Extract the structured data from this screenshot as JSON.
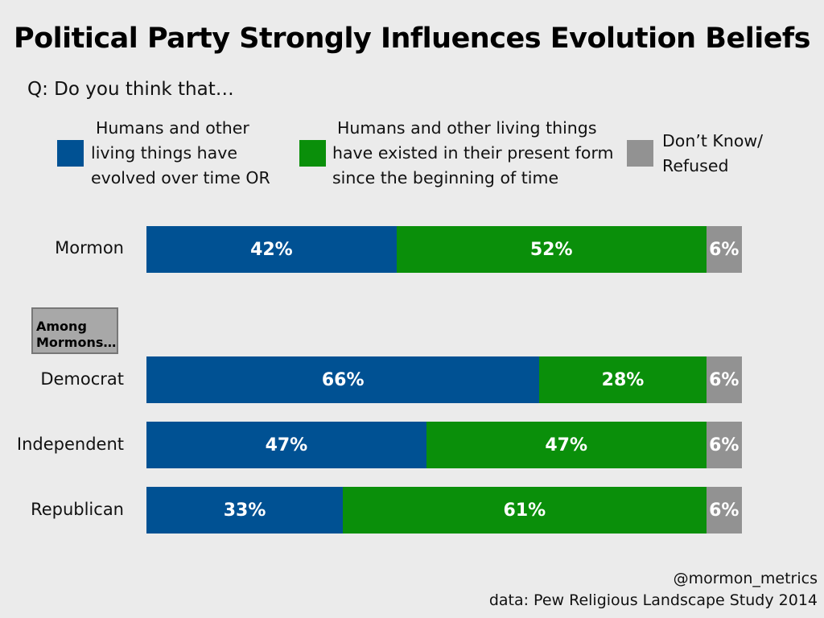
{
  "title": "Political Party Strongly Influences Evolution Beliefs",
  "question": "Q: Do you think that…",
  "subgroup_label": "Among Mormons…",
  "credits": {
    "handle": "@mormon_metrics",
    "source": "data: Pew Religious Landscape Study 2014"
  },
  "chart_data": {
    "type": "bar",
    "orientation": "horizontal",
    "stacked": true,
    "xlim": [
      0,
      100
    ],
    "legend_placement": "top",
    "categories": [
      "Mormon",
      "Democrat",
      "Independent",
      "Republican"
    ],
    "series": [
      {
        "name": "Humans and other living things have evolved over time OR",
        "color": "#005193",
        "values": [
          42,
          66,
          47,
          33
        ],
        "labels": [
          "42%",
          "66%",
          "47%",
          "33%"
        ]
      },
      {
        "name": "Humans and other living things have existed in their present form since the beginning of time",
        "color": "#0a8f0a",
        "values": [
          52,
          28,
          47,
          61
        ],
        "labels": [
          "52%",
          "28%",
          "47%",
          "61%"
        ]
      },
      {
        "name": "Don’t Know/ Refused",
        "color": "#929292",
        "values": [
          6,
          6,
          6,
          6
        ],
        "labels": [
          "6%",
          "6%",
          "6%",
          "6%"
        ]
      }
    ]
  }
}
